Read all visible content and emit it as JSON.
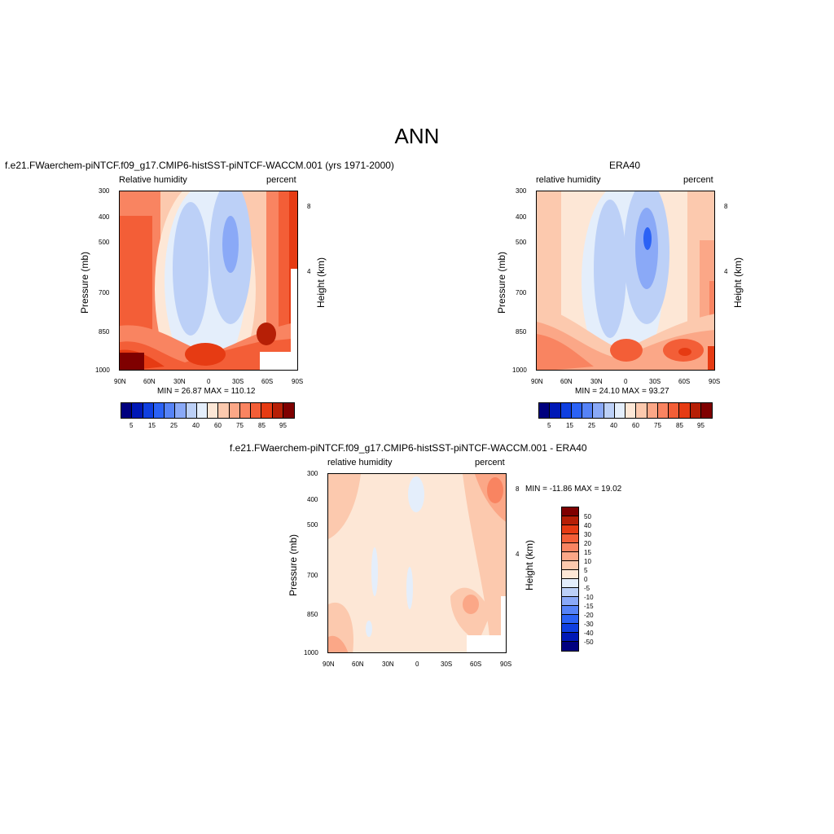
{
  "main_title": "ANN",
  "palette": [
    "#00007f",
    "#0018b6",
    "#0f3fe0",
    "#2b62f5",
    "#5683f7",
    "#8aa9f7",
    "#bcd0f7",
    "#e4eefb",
    "#fde7d6",
    "#fcc9ae",
    "#fba787",
    "#f98461",
    "#f35e37",
    "#e63b13",
    "#b61f06",
    "#7f0000"
  ],
  "panels": [
    {
      "id": "model",
      "title": "f.e21.FWaerchem-piNTCF.f09_g17.CMIP6-histSST-piNTCF-WACCM.001 (yrs 1971-2000)",
      "left_label": "Relative humidity",
      "right_label": "percent",
      "ylabel": "Pressure (mb)",
      "ylabel_right": "Height (km)",
      "minmax": "MIN =  26.87  MAX = 110.12"
    },
    {
      "id": "obs",
      "title": "ERA40",
      "left_label": "relative humidity",
      "right_label": "percent",
      "ylabel": "Pressure (mb)",
      "ylabel_right": "Height (km)",
      "minmax": "MIN =  24.10  MAX =  93.27"
    },
    {
      "id": "diff",
      "title": "f.e21.FWaerchem-piNTCF.f09_g17.CMIP6-histSST-piNTCF-WACCM.001 - ERA40",
      "left_label": "relative humidity",
      "right_label": "percent",
      "ylabel": "Pressure (mb)",
      "ylabel_right": "Height (km)",
      "minmax": "MIN = -11.86  MAX =  19.02"
    }
  ],
  "xticks": [
    "90N",
    "60N",
    "30N",
    "0",
    "30S",
    "60S",
    "90S"
  ],
  "yticks": [
    "300",
    "400",
    "500",
    "700",
    "850",
    "1000"
  ],
  "yticks_right": [
    "8",
    "4"
  ],
  "colorbar_abs": [
    "5",
    "15",
    "25",
    "40",
    "60",
    "75",
    "85",
    "95"
  ],
  "colorbar_diff": [
    "50",
    "40",
    "30",
    "20",
    "15",
    "10",
    "5",
    "0",
    "-5",
    "-10",
    "-15",
    "-20",
    "-30",
    "-40",
    "-50"
  ],
  "chart_data": [
    {
      "type": "heatmap",
      "title": "f.e21.FWaerchem-piNTCF.f09_g17.CMIP6-histSST-piNTCF-WACCM.001 (yrs 1971-2000)",
      "variable": "Relative humidity",
      "units": "percent",
      "x": [
        "90N",
        "60N",
        "30N",
        "0",
        "30S",
        "60S",
        "90S"
      ],
      "y_pressure_mb": [
        300,
        400,
        500,
        700,
        850,
        1000
      ],
      "ylabel": "Pressure (mb)",
      "ylabel_right": "Height (km)",
      "min": 26.87,
      "max": 110.12,
      "levels": [
        5,
        10,
        15,
        20,
        25,
        30,
        40,
        50,
        60,
        70,
        75,
        80,
        85,
        90,
        95
      ]
    },
    {
      "type": "heatmap",
      "title": "ERA40",
      "variable": "relative humidity",
      "units": "percent",
      "x": [
        "90N",
        "60N",
        "30N",
        "0",
        "30S",
        "60S",
        "90S"
      ],
      "y_pressure_mb": [
        300,
        400,
        500,
        700,
        850,
        1000
      ],
      "min": 24.1,
      "max": 93.27,
      "levels": [
        5,
        10,
        15,
        20,
        25,
        30,
        40,
        50,
        60,
        70,
        75,
        80,
        85,
        90,
        95
      ]
    },
    {
      "type": "heatmap",
      "title": "f.e21.FWaerchem-piNTCF.f09_g17.CMIP6-histSST-piNTCF-WACCM.001 - ERA40",
      "variable": "relative humidity",
      "units": "percent",
      "x": [
        "90N",
        "60N",
        "30N",
        "0",
        "30S",
        "60S",
        "90S"
      ],
      "y_pressure_mb": [
        300,
        400,
        500,
        700,
        850,
        1000
      ],
      "min": -11.86,
      "max": 19.02,
      "levels": [
        -50,
        -40,
        -30,
        -20,
        -15,
        -10,
        -5,
        0,
        5,
        10,
        15,
        20,
        30,
        40,
        50
      ]
    }
  ]
}
